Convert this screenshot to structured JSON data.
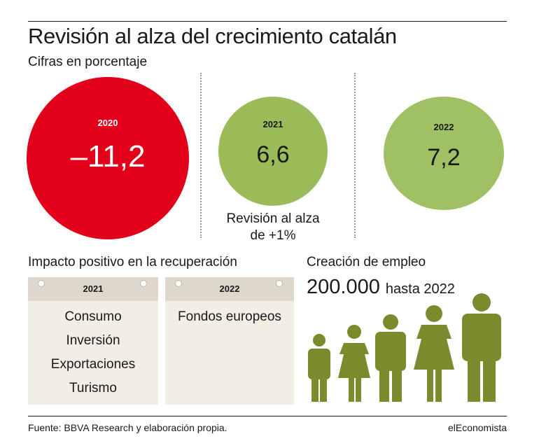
{
  "header": {
    "title": "Revisión al alza del crecimiento catalán",
    "subtitle": "Cifras en porcentaje"
  },
  "circles": [
    {
      "year": "2020",
      "value": "–11,2",
      "color": "#e3001b"
    },
    {
      "year": "2021",
      "value": "6,6",
      "color": "#9bbb59",
      "note_line1": "Revisión al alza",
      "note_line2": "de +1%"
    },
    {
      "year": "2022",
      "value": "7,2",
      "color": "#9fc063"
    }
  ],
  "impact": {
    "heading": "Impacto positivo en la recuperación",
    "cards": [
      {
        "year": "2021",
        "items": [
          "Consumo",
          "Inversión",
          "Exportaciones",
          "Turismo"
        ]
      },
      {
        "year": "2022",
        "items": [
          "Fondos europeos"
        ]
      }
    ]
  },
  "employment": {
    "heading": "Creación de empleo",
    "number": "200.000",
    "suffix": "hasta 2022",
    "figure_color": "#7a8a2c",
    "figures": [
      "man-icon",
      "woman-icon",
      "man-icon",
      "woman-icon",
      "man-icon"
    ]
  },
  "footer": {
    "source": "Fuente: BBVA Research y elaboración propia.",
    "brand": "elEconomista"
  }
}
